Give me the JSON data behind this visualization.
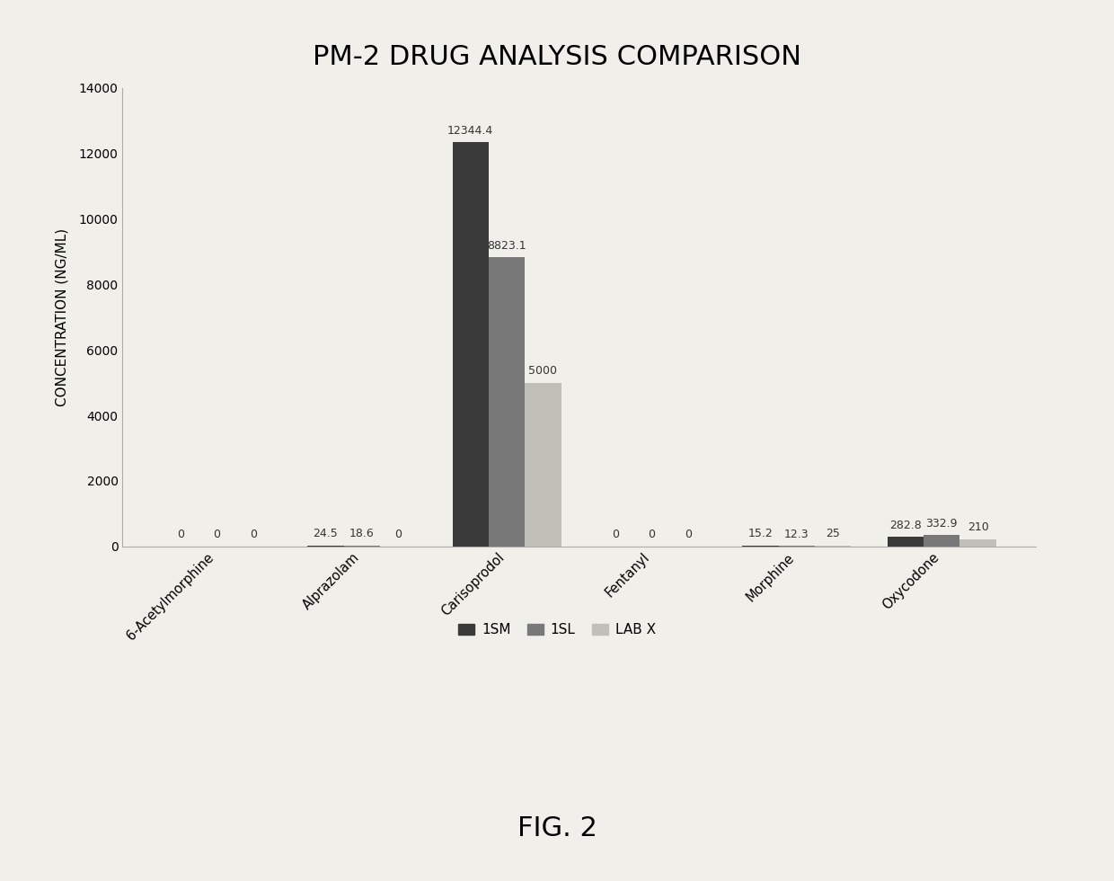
{
  "title": "PM-2 DRUG ANALYSIS COMPARISON",
  "ylabel": "CONCENTRATION (NG/ML)",
  "categories": [
    "6-Acetylmorphine",
    "Alprazolam",
    "Carisoprodol",
    "Fentanyl",
    "Morphine",
    "Oxycodone"
  ],
  "series": {
    "1SM": [
      0,
      24.5,
      12344.4,
      0,
      15.2,
      282.8
    ],
    "1SL": [
      0,
      18.6,
      8823.1,
      0,
      12.3,
      332.9
    ],
    "LAB X": [
      0,
      0,
      5000,
      0,
      25,
      210
    ]
  },
  "colors": {
    "1SM": "#3a3a3a",
    "1SL": "#787878",
    "LAB X": "#c0c0b8"
  },
  "ylim": [
    0,
    14000
  ],
  "yticks": [
    0,
    2000,
    4000,
    6000,
    8000,
    10000,
    12000,
    14000
  ],
  "fig_caption": "FIG. 2",
  "background_color": "#f0efea"
}
